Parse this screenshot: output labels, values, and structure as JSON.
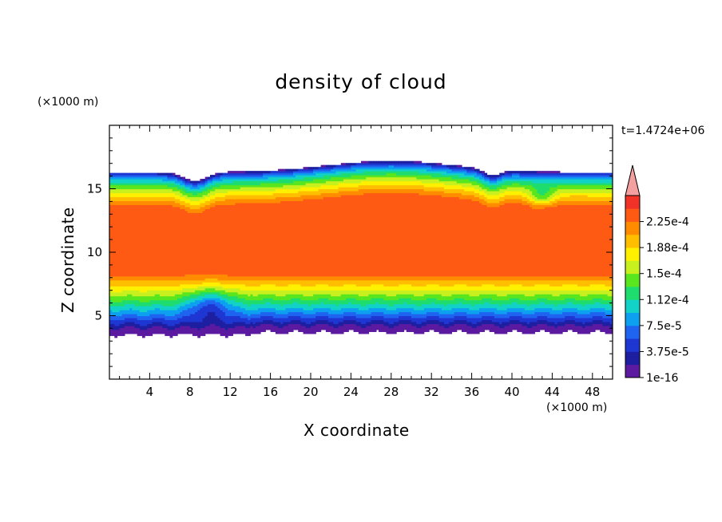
{
  "chart_data": {
    "type": "heatmap",
    "title": "density of cloud",
    "xlabel": "X coordinate",
    "ylabel": "Z coordinate",
    "x_unit": "(×1000 m)",
    "y_unit": "(×1000 m)",
    "annotation": "t=1.4724e+06",
    "xlim": [
      0,
      50
    ],
    "ylim": [
      0,
      20
    ],
    "x_ticks": [
      4,
      8,
      12,
      16,
      20,
      24,
      28,
      32,
      36,
      40,
      44,
      48
    ],
    "y_ticks": [
      5,
      10,
      15
    ],
    "field": {
      "cloud_base_km": 4.0,
      "cloud_top_km": 16.3,
      "core_value": 0.00024,
      "dome_center_x_km": 28,
      "dome_top_km": 17.2
    },
    "colorbar": {
      "labels": [
        "2.25e-4",
        "1.88e-4",
        "1.5e-4",
        "1.12e-4",
        "7.5e-5",
        "3.75e-5",
        "1e-16"
      ],
      "levels": [
        1e-16,
        1.875e-05,
        3.75e-05,
        5.625e-05,
        7.5e-05,
        9.375e-05,
        0.0001125,
        0.00013125,
        0.00015,
        0.00016875,
        0.0001875,
        0.00020625,
        0.000225,
        0.00024375
      ],
      "colors": [
        "#5b1aa0",
        "#1e1ea0",
        "#1e36d2",
        "#1e64f0",
        "#0ea0f0",
        "#12d2c8",
        "#1edc6e",
        "#5ae61e",
        "#c8f01e",
        "#fff000",
        "#ffbe00",
        "#ff8c00",
        "#ff5a14",
        "#f03228"
      ],
      "extend_color": "#f5a0a0"
    }
  }
}
